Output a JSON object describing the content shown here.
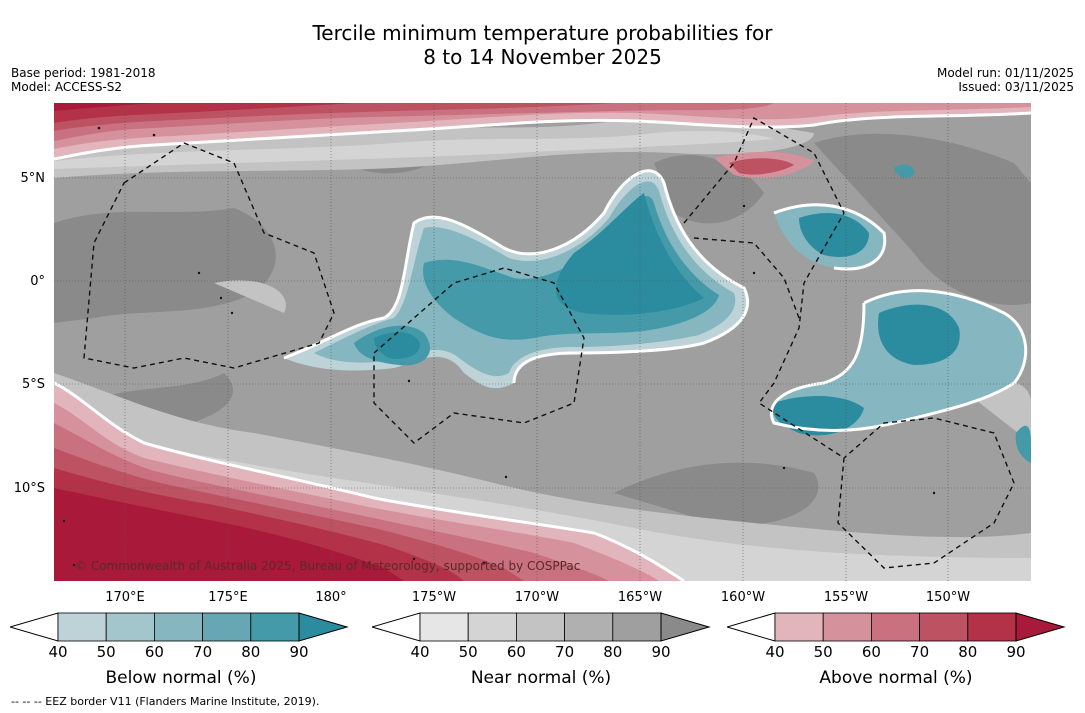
{
  "title_line1": "Tercile minimum temperature probabilities for",
  "title_line2": "8 to 14 November 2025",
  "base_period": "Base period: 1981-2018",
  "model": "Model: ACCESS-S2",
  "model_run": "Model run: 01/11/2025",
  "issued": "Issued: 03/11/2025",
  "lat_labels": [
    "5°N",
    "0°",
    "5°S",
    "10°S"
  ],
  "lon_labels": [
    "170°E",
    "175°E",
    "180°",
    "175°W",
    "170°W",
    "165°W",
    "160°W",
    "155°W",
    "150°W"
  ],
  "copyright": "© Commonwealth of Australia 2025, Bureau of Meteorology, supported by COSPPac",
  "footer": "--  --  -- EEZ border V11 (Flanders Marine Institute, 2019).",
  "colorbars": [
    {
      "label": "Below normal (%)",
      "ticks": [
        "40",
        "50",
        "60",
        "70",
        "80",
        "90"
      ],
      "colors": [
        "#bed3d8",
        "#a3c5cc",
        "#86b6c0",
        "#67a7b4",
        "#449aa9",
        "#2a8c9e"
      ]
    },
    {
      "label": "Near normal (%)",
      "ticks": [
        "40",
        "50",
        "60",
        "70",
        "80",
        "90"
      ],
      "colors": [
        "#e6e6e6",
        "#d4d4d4",
        "#c3c3c3",
        "#b0b0b0",
        "#9f9f9f",
        "#8a8a8a"
      ]
    },
    {
      "label": "Above normal (%)",
      "ticks": [
        "40",
        "50",
        "60",
        "70",
        "80",
        "90"
      ],
      "colors": [
        "#e2b4bb",
        "#d6929c",
        "#c9717f",
        "#bd5262",
        "#b33248",
        "#a9193a"
      ]
    }
  ],
  "colors": {
    "below": "#2a8c9e",
    "near": "#8a8a8a",
    "above": "#a9193a",
    "background_near": "#9c9c9c"
  }
}
